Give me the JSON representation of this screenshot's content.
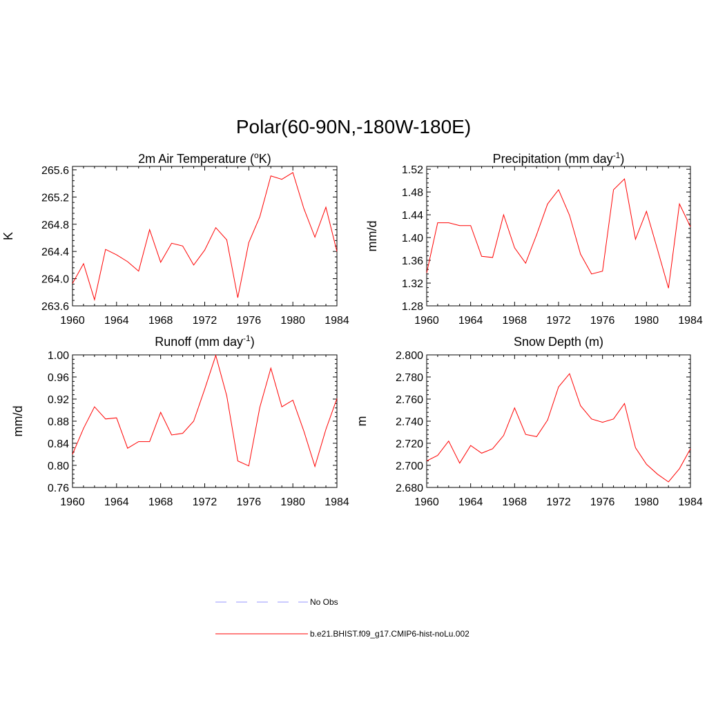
{
  "title": "Polar(60-90N,-180W-180E)",
  "colors": {
    "model": "#ff0000",
    "obs": "#aaaaff"
  },
  "legend": {
    "obs_label": "No Obs",
    "model_label": "b.e21.BHIST.f09_g17.CMIP6-hist-noLu.002"
  },
  "chart_data": [
    {
      "type": "line",
      "title": "2m Air Temperature (",
      "title_sup": "o",
      "title_end": "K)",
      "ylabel": "K",
      "xlim": [
        1960,
        1984
      ],
      "ylim": [
        263.6,
        265.65
      ],
      "x_ticks": [
        1960,
        1964,
        1968,
        1972,
        1976,
        1980,
        1984
      ],
      "y_ticks": [
        "263.6",
        "264.0",
        "264.4",
        "264.8",
        "265.2",
        "265.6"
      ],
      "grid": false,
      "series": [
        {
          "x": [
            1960,
            1961,
            1962,
            1963,
            1964,
            1965,
            1966,
            1967,
            1968,
            1969,
            1970,
            1971,
            1972,
            1973,
            1974,
            1975,
            1976,
            1977,
            1978,
            1979,
            1980,
            1981,
            1982,
            1983,
            1984
          ],
          "values": [
            263.93,
            264.22,
            263.69,
            264.43,
            264.35,
            264.25,
            264.11,
            264.72,
            264.24,
            264.52,
            264.48,
            264.2,
            264.42,
            264.75,
            264.57,
            263.72,
            264.53,
            264.91,
            265.51,
            265.46,
            265.56,
            265.03,
            264.61,
            265.05,
            264.4
          ]
        }
      ]
    },
    {
      "type": "line",
      "title": "Precipitation (mm day",
      "title_sup": "-1",
      "title_end": ")",
      "ylabel": "mm/d",
      "xlim": [
        1960,
        1984
      ],
      "ylim": [
        1.28,
        1.525
      ],
      "x_ticks": [
        1960,
        1964,
        1968,
        1972,
        1976,
        1980,
        1984
      ],
      "y_ticks": [
        "1.28",
        "1.32",
        "1.36",
        "1.40",
        "1.44",
        "1.48",
        "1.52"
      ],
      "grid": false,
      "series": [
        {
          "x": [
            1960,
            1961,
            1962,
            1963,
            1964,
            1965,
            1966,
            1967,
            1968,
            1969,
            1970,
            1971,
            1972,
            1973,
            1974,
            1975,
            1976,
            1977,
            1978,
            1979,
            1980,
            1981,
            1982,
            1983,
            1984
          ],
          "values": [
            1.338,
            1.426,
            1.426,
            1.421,
            1.421,
            1.367,
            1.365,
            1.44,
            1.382,
            1.355,
            1.405,
            1.459,
            1.484,
            1.439,
            1.371,
            1.336,
            1.341,
            1.484,
            1.503,
            1.397,
            1.446,
            1.379,
            1.311,
            1.459,
            1.419
          ]
        }
      ]
    },
    {
      "type": "line",
      "title": "Runoff (mm day",
      "title_sup": "-1",
      "title_end": ")",
      "ylabel": "mm/d",
      "xlim": [
        1960,
        1984
      ],
      "ylim": [
        0.76,
        1.0
      ],
      "x_ticks": [
        1960,
        1964,
        1968,
        1972,
        1976,
        1980,
        1984
      ],
      "y_ticks": [
        "0.76",
        "0.80",
        "0.84",
        "0.88",
        "0.92",
        "0.96",
        "1.00"
      ],
      "grid": false,
      "series": [
        {
          "x": [
            1960,
            1961,
            1962,
            1963,
            1964,
            1965,
            1966,
            1967,
            1968,
            1969,
            1970,
            1971,
            1972,
            1973,
            1974,
            1975,
            1976,
            1977,
            1978,
            1979,
            1980,
            1981,
            1982,
            1983,
            1984
          ],
          "values": [
            0.82,
            0.867,
            0.906,
            0.884,
            0.886,
            0.831,
            0.843,
            0.843,
            0.896,
            0.855,
            0.858,
            0.88,
            0.938,
            0.999,
            0.926,
            0.808,
            0.799,
            0.905,
            0.976,
            0.906,
            0.918,
            0.862,
            0.798,
            0.865,
            0.921
          ]
        }
      ]
    },
    {
      "type": "line",
      "title": "Snow Depth (m)",
      "title_sup": "",
      "title_end": "",
      "ylabel": "m",
      "xlim": [
        1960,
        1984
      ],
      "ylim": [
        2.68,
        2.8
      ],
      "x_ticks": [
        1960,
        1964,
        1968,
        1972,
        1976,
        1980,
        1984
      ],
      "y_ticks": [
        "2.680",
        "2.700",
        "2.720",
        "2.740",
        "2.760",
        "2.780",
        "2.800"
      ],
      "grid": false,
      "series": [
        {
          "x": [
            1960,
            1961,
            1962,
            1963,
            1964,
            1965,
            1966,
            1967,
            1968,
            1969,
            1970,
            1971,
            1972,
            1973,
            1974,
            1975,
            1976,
            1977,
            1978,
            1979,
            1980,
            1981,
            1982,
            1983,
            1984
          ],
          "values": [
            2.704,
            2.709,
            2.722,
            2.702,
            2.718,
            2.711,
            2.715,
            2.727,
            2.752,
            2.728,
            2.726,
            2.741,
            2.771,
            2.783,
            2.754,
            2.742,
            2.739,
            2.742,
            2.756,
            2.716,
            2.701,
            2.692,
            2.685,
            2.697,
            2.715
          ]
        }
      ]
    }
  ]
}
